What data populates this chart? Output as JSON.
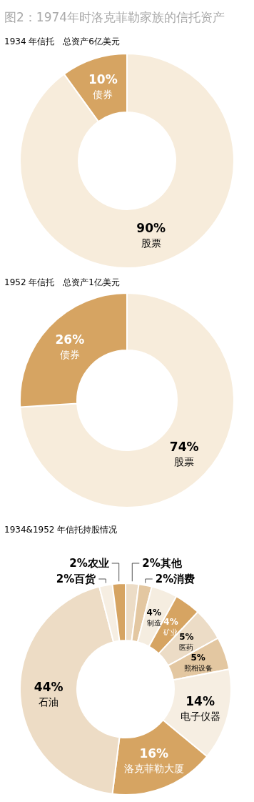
{
  "chart_data": [
    {
      "type": "donut",
      "title": "图2：1974年时洛克菲勒家族的信托资产",
      "subtitle": "1934 年信托　总资产6亿美元",
      "categories": [
        "股票",
        "债券"
      ],
      "values": [
        90,
        10
      ],
      "colors": [
        "#f7ecdb",
        "#d6a462"
      ],
      "value_labels": [
        "90%",
        "10%"
      ]
    },
    {
      "type": "donut",
      "title": "1952 年信托　总资产1亿美元",
      "categories": [
        "股票",
        "债券"
      ],
      "values": [
        74,
        26
      ],
      "colors": [
        "#f7ecdb",
        "#d6a462"
      ],
      "value_labels": [
        "74%",
        "26%"
      ]
    },
    {
      "type": "donut",
      "title": "1934&1952 年信托持股情况",
      "categories": [
        "其他",
        "消费",
        "制造",
        "矿业",
        "医药",
        "照相设备",
        "电子仪器",
        "洛克菲勒大厦",
        "石油",
        "百货",
        "农业"
      ],
      "values": [
        2,
        2,
        4,
        4,
        5,
        5,
        14,
        16,
        44,
        2,
        2
      ],
      "colors": [
        "#ecdcc6",
        "#e3c7a1",
        "#f5ede0",
        "#d6a462",
        "#ecdcc6",
        "#e3c7a1",
        "#f6eee2",
        "#d6a462",
        "#eddcc5",
        "#f6eee2",
        "#d6a462"
      ],
      "value_labels": [
        "2%",
        "2%",
        "4%",
        "4%",
        "5%",
        "5%",
        "14%",
        "16%",
        "44%",
        "2%",
        "2%"
      ]
    }
  ]
}
